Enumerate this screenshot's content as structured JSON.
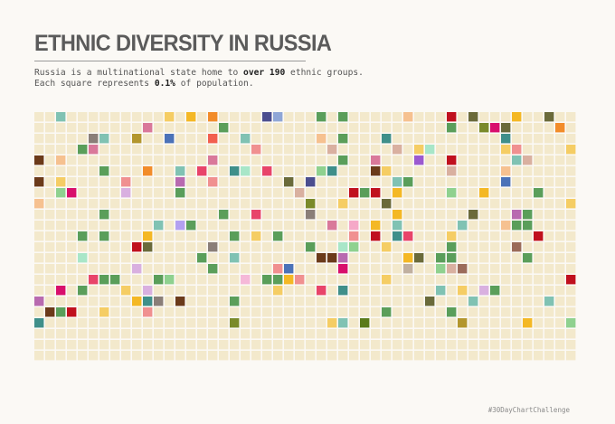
{
  "title": "ETHNIC DIVERSITY IN RUSSIA",
  "subtitle": {
    "line1_prefix": "Russia is a multinational state home to ",
    "line1_bold": "over 190",
    "line1_suffix": " ethnic groups.",
    "line2_prefix": "Each square represents ",
    "line2_bold": "0.1%",
    "line2_suffix": " of population."
  },
  "credit": "#30DayChartChallenge",
  "colors": {
    "background": "#fbf9f5",
    "base_square": "#f3e9cc"
  },
  "chart_data": {
    "type": "waffle",
    "grid": {
      "columns": 50,
      "rows": 23
    },
    "unit_value_percent": 0.1,
    "base_color": "#f3e9cc",
    "highlighted": [
      [
        0,
        2,
        "#80c2b3"
      ],
      [
        0,
        12,
        "#f5cd64"
      ],
      [
        0,
        14,
        "#f4b825"
      ],
      [
        0,
        16,
        "#f28c2a"
      ],
      [
        0,
        21,
        "#4b4e8f"
      ],
      [
        0,
        22,
        "#8fa6d6"
      ],
      [
        0,
        26,
        "#5a9e5a"
      ],
      [
        0,
        28,
        "#5a9e5a"
      ],
      [
        0,
        34,
        "#f6c190"
      ],
      [
        0,
        38,
        "#c0101e"
      ],
      [
        0,
        40,
        "#6a6a3a"
      ],
      [
        0,
        44,
        "#f4b825"
      ],
      [
        0,
        47,
        "#6a6a3a"
      ],
      [
        1,
        10,
        "#d9789a"
      ],
      [
        1,
        17,
        "#5a9e5a"
      ],
      [
        1,
        38,
        "#5a9e5a"
      ],
      [
        1,
        41,
        "#7a8a2a"
      ],
      [
        1,
        42,
        "#d80f6c"
      ],
      [
        1,
        43,
        "#6a6a3a"
      ],
      [
        1,
        48,
        "#f28c2a"
      ],
      [
        2,
        5,
        "#8a7e78"
      ],
      [
        2,
        6,
        "#80c2b3"
      ],
      [
        2,
        9,
        "#b3962e"
      ],
      [
        2,
        12,
        "#4b72b8"
      ],
      [
        2,
        16,
        "#f25f4f"
      ],
      [
        2,
        19,
        "#80c2b3"
      ],
      [
        2,
        26,
        "#f6c190"
      ],
      [
        2,
        28,
        "#5a9e5a"
      ],
      [
        2,
        32,
        "#3f8f8a"
      ],
      [
        2,
        43,
        "#3f8f8a"
      ],
      [
        3,
        4,
        "#5a9e5a"
      ],
      [
        3,
        5,
        "#d9789a"
      ],
      [
        3,
        20,
        "#f09090"
      ],
      [
        3,
        27,
        "#d9b0a0"
      ],
      [
        3,
        33,
        "#d9b0a0"
      ],
      [
        3,
        35,
        "#f5cd64"
      ],
      [
        3,
        36,
        "#a8e6c8"
      ],
      [
        3,
        43,
        "#f5cd64"
      ],
      [
        3,
        44,
        "#f09090"
      ],
      [
        3,
        49,
        "#f5cd64"
      ],
      [
        4,
        0,
        "#6b3a1a"
      ],
      [
        4,
        2,
        "#f6c190"
      ],
      [
        4,
        16,
        "#d9789a"
      ],
      [
        4,
        28,
        "#5a9e5a"
      ],
      [
        4,
        31,
        "#d9789a"
      ],
      [
        4,
        35,
        "#9b59d0"
      ],
      [
        4,
        38,
        "#c0101e"
      ],
      [
        4,
        44,
        "#80c2b3"
      ],
      [
        4,
        45,
        "#d9b0a0"
      ],
      [
        5,
        6,
        "#5a9e5a"
      ],
      [
        5,
        10,
        "#f28c2a"
      ],
      [
        5,
        13,
        "#80c2b3"
      ],
      [
        5,
        15,
        "#e8446a"
      ],
      [
        5,
        18,
        "#3f8f8a"
      ],
      [
        5,
        19,
        "#a8e6c8"
      ],
      [
        5,
        21,
        "#e8446a"
      ],
      [
        5,
        26,
        "#8fd18f"
      ],
      [
        5,
        27,
        "#3f8f8a"
      ],
      [
        5,
        31,
        "#6b3a1a"
      ],
      [
        5,
        32,
        "#f5cd64"
      ],
      [
        5,
        38,
        "#d9b0a0"
      ],
      [
        5,
        43,
        "#f6c190"
      ],
      [
        6,
        0,
        "#6b3a1a"
      ],
      [
        6,
        2,
        "#f5cd64"
      ],
      [
        6,
        8,
        "#f09090"
      ],
      [
        6,
        13,
        "#b86ab0"
      ],
      [
        6,
        16,
        "#f09090"
      ],
      [
        6,
        23,
        "#6a6a3a"
      ],
      [
        6,
        25,
        "#4b4e8f"
      ],
      [
        6,
        33,
        "#80c2b3"
      ],
      [
        6,
        34,
        "#5a9e5a"
      ],
      [
        6,
        43,
        "#4b72b8"
      ],
      [
        7,
        2,
        "#8fd18f"
      ],
      [
        7,
        3,
        "#d80f6c"
      ],
      [
        7,
        8,
        "#d9b0e0"
      ],
      [
        7,
        13,
        "#5a9e5a"
      ],
      [
        7,
        24,
        "#d9b0a0"
      ],
      [
        7,
        29,
        "#c0101e"
      ],
      [
        7,
        30,
        "#5a9e5a"
      ],
      [
        7,
        31,
        "#c0101e"
      ],
      [
        7,
        33,
        "#f4b825"
      ],
      [
        7,
        38,
        "#8fd18f"
      ],
      [
        7,
        41,
        "#f4b825"
      ],
      [
        7,
        46,
        "#5a9e5a"
      ],
      [
        8,
        0,
        "#f6c190"
      ],
      [
        8,
        25,
        "#7a8a2a"
      ],
      [
        8,
        28,
        "#f5cd64"
      ],
      [
        8,
        32,
        "#6a6a3a"
      ],
      [
        8,
        49,
        "#f5cd64"
      ],
      [
        9,
        6,
        "#5a9e5a"
      ],
      [
        9,
        17,
        "#5a9e5a"
      ],
      [
        9,
        20,
        "#e8446a"
      ],
      [
        9,
        25,
        "#8a7e78"
      ],
      [
        9,
        33,
        "#f4b825"
      ],
      [
        9,
        40,
        "#6a6a3a"
      ],
      [
        9,
        44,
        "#b86ab0"
      ],
      [
        9,
        45,
        "#5a9e5a"
      ],
      [
        10,
        11,
        "#80c2b3"
      ],
      [
        10,
        13,
        "#b3a0f0"
      ],
      [
        10,
        14,
        "#5a9e5a"
      ],
      [
        10,
        27,
        "#d9789a"
      ],
      [
        10,
        29,
        "#f5a8c8"
      ],
      [
        10,
        31,
        "#f4b825"
      ],
      [
        10,
        33,
        "#80c2b3"
      ],
      [
        10,
        39,
        "#80c2b3"
      ],
      [
        10,
        43,
        "#f6c190"
      ],
      [
        10,
        44,
        "#5a9e5a"
      ],
      [
        10,
        45,
        "#5a9e5a"
      ],
      [
        11,
        4,
        "#5a9e5a"
      ],
      [
        11,
        6,
        "#5a9e5a"
      ],
      [
        11,
        10,
        "#f4b825"
      ],
      [
        11,
        18,
        "#5a9e5a"
      ],
      [
        11,
        20,
        "#f5cd64"
      ],
      [
        11,
        22,
        "#5a9e5a"
      ],
      [
        11,
        29,
        "#f09090"
      ],
      [
        11,
        31,
        "#c0101e"
      ],
      [
        11,
        33,
        "#3f8f8a"
      ],
      [
        11,
        34,
        "#e8446a"
      ],
      [
        11,
        38,
        "#f5cd64"
      ],
      [
        11,
        46,
        "#c0101e"
      ],
      [
        12,
        9,
        "#c0101e"
      ],
      [
        12,
        10,
        "#6a6a3a"
      ],
      [
        12,
        16,
        "#8a7e78"
      ],
      [
        12,
        25,
        "#5a9e5a"
      ],
      [
        12,
        28,
        "#a8e6c8"
      ],
      [
        12,
        29,
        "#8fd18f"
      ],
      [
        12,
        32,
        "#f5cd64"
      ],
      [
        12,
        38,
        "#5a9e5a"
      ],
      [
        12,
        44,
        "#9b6b5a"
      ],
      [
        13,
        4,
        "#a8e6c8"
      ],
      [
        13,
        15,
        "#5a9e5a"
      ],
      [
        13,
        18,
        "#80c2b3"
      ],
      [
        13,
        26,
        "#6b3a1a"
      ],
      [
        13,
        27,
        "#6b3a1a"
      ],
      [
        13,
        28,
        "#b86ab0"
      ],
      [
        13,
        34,
        "#f4b825"
      ],
      [
        13,
        35,
        "#6a6a3a"
      ],
      [
        13,
        37,
        "#5a9e5a"
      ],
      [
        13,
        38,
        "#5a9e5a"
      ],
      [
        13,
        45,
        "#5a9e5a"
      ],
      [
        14,
        9,
        "#d9b0e0"
      ],
      [
        14,
        16,
        "#5a9e5a"
      ],
      [
        14,
        22,
        "#f09090"
      ],
      [
        14,
        23,
        "#4b72b8"
      ],
      [
        14,
        28,
        "#d80f6c"
      ],
      [
        14,
        34,
        "#c0b0a0"
      ],
      [
        14,
        37,
        "#8fd18f"
      ],
      [
        14,
        38,
        "#d9b0a0"
      ],
      [
        14,
        39,
        "#9b6b5a"
      ],
      [
        15,
        5,
        "#e8446a"
      ],
      [
        15,
        6,
        "#5a9e5a"
      ],
      [
        15,
        7,
        "#5a9e5a"
      ],
      [
        15,
        11,
        "#5a9e5a"
      ],
      [
        15,
        12,
        "#8fd18f"
      ],
      [
        15,
        19,
        "#f5b8d8"
      ],
      [
        15,
        21,
        "#5a9e5a"
      ],
      [
        15,
        22,
        "#5a9e5a"
      ],
      [
        15,
        23,
        "#f4b825"
      ],
      [
        15,
        24,
        "#f09090"
      ],
      [
        15,
        32,
        "#f5cd64"
      ],
      [
        15,
        49,
        "#c0101e"
      ],
      [
        16,
        2,
        "#d80f6c"
      ],
      [
        16,
        4,
        "#5a9e5a"
      ],
      [
        16,
        8,
        "#f5cd64"
      ],
      [
        16,
        10,
        "#d9b0e0"
      ],
      [
        16,
        22,
        "#f5cd64"
      ],
      [
        16,
        26,
        "#e8446a"
      ],
      [
        16,
        28,
        "#3f8f8a"
      ],
      [
        16,
        37,
        "#80c2b3"
      ],
      [
        16,
        39,
        "#f5cd64"
      ],
      [
        16,
        41,
        "#d9b0e0"
      ],
      [
        16,
        42,
        "#5a9e5a"
      ],
      [
        17,
        0,
        "#b86ab0"
      ],
      [
        17,
        9,
        "#f4b825"
      ],
      [
        17,
        10,
        "#3f8f8a"
      ],
      [
        17,
        11,
        "#8a7e78"
      ],
      [
        17,
        13,
        "#6b3a1a"
      ],
      [
        17,
        18,
        "#5a9e5a"
      ],
      [
        17,
        36,
        "#6a6a3a"
      ],
      [
        17,
        40,
        "#80c2b3"
      ],
      [
        17,
        47,
        "#80c2b3"
      ],
      [
        18,
        1,
        "#6b3a1a"
      ],
      [
        18,
        2,
        "#5a9e5a"
      ],
      [
        18,
        3,
        "#c0101e"
      ],
      [
        18,
        6,
        "#f5cd64"
      ],
      [
        18,
        10,
        "#f09090"
      ],
      [
        18,
        32,
        "#5a9e5a"
      ],
      [
        18,
        38,
        "#5a9e5a"
      ],
      [
        19,
        0,
        "#3f8f8a"
      ],
      [
        19,
        18,
        "#7a8a2a"
      ],
      [
        19,
        27,
        "#f5cd64"
      ],
      [
        19,
        28,
        "#80c2b3"
      ],
      [
        19,
        30,
        "#5a7a1a"
      ],
      [
        19,
        39,
        "#b3962e"
      ],
      [
        19,
        45,
        "#f4b825"
      ],
      [
        19,
        49,
        "#8fd18f"
      ]
    ]
  }
}
